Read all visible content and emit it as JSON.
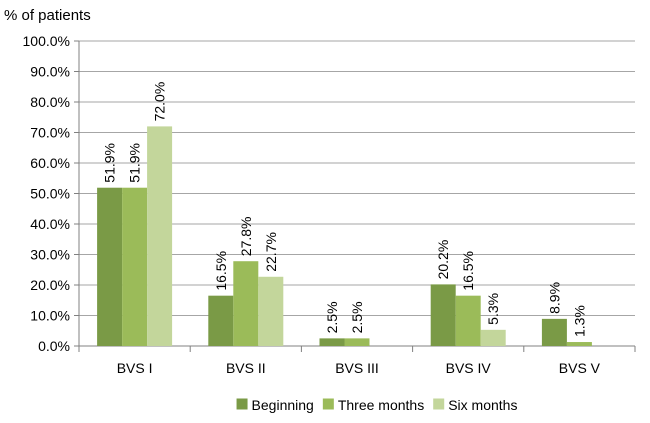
{
  "chart_data": {
    "type": "bar",
    "title": "",
    "xlabel": "",
    "ylabel": "% of patients",
    "ylim": [
      0,
      100
    ],
    "ytick_step": 10,
    "ytick_labels": [
      "0.0%",
      "10.0%",
      "20.0%",
      "30.0%",
      "40.0%",
      "50.0%",
      "60.0%",
      "70.0%",
      "80.0%",
      "90.0%",
      "100.0%"
    ],
    "grid": true,
    "legend_position": "bottom",
    "categories": [
      "BVS I",
      "BVS II",
      "BVS III",
      "BVS IV",
      "BVS V"
    ],
    "series": [
      {
        "name": "Beginning",
        "color": "#7a9a46",
        "values": [
          51.9,
          16.5,
          2.5,
          20.2,
          8.9
        ],
        "labels": [
          "51.9%",
          "16.5%",
          "2.5%",
          "20.2%",
          "8.9%"
        ]
      },
      {
        "name": "Three months",
        "color": "#9bbb59",
        "values": [
          51.9,
          27.8,
          2.5,
          16.5,
          1.3
        ],
        "labels": [
          "51.9%",
          "27.8%",
          "2.5%",
          "16.5%",
          "1.3%"
        ]
      },
      {
        "name": "Six months",
        "color": "#c3d69b",
        "values": [
          72.0,
          22.7,
          0,
          5.3,
          0
        ],
        "labels": [
          "72.0%",
          "22.7%",
          "",
          "5.3%",
          ""
        ]
      }
    ]
  }
}
